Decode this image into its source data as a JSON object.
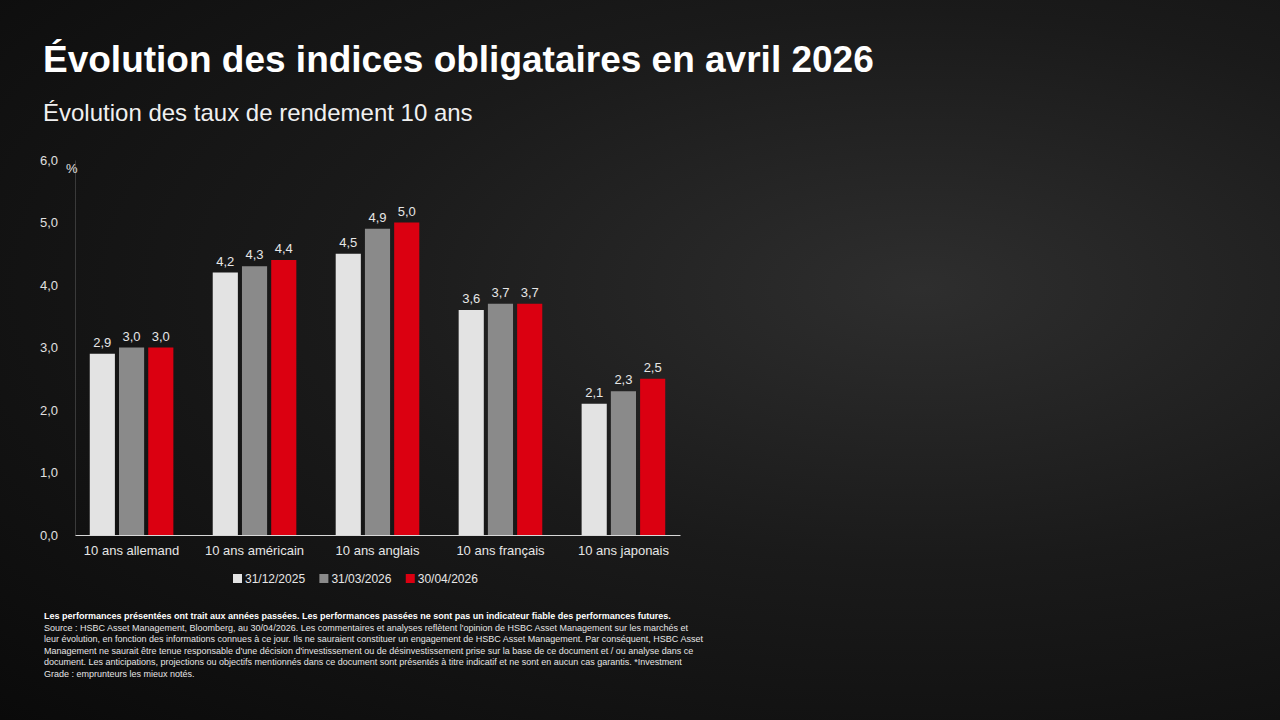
{
  "chart_data": {
    "type": "bar",
    "title": "Évolution des indices obligataires en avril 2026",
    "subtitle": "Évolution des taux de rendement 10 ans",
    "ylabel": "%",
    "categories": [
      "10 ans allemand",
      "10 ans américain",
      "10 ans anglais",
      "10 ans français",
      "10 ans japonais"
    ],
    "series": [
      {
        "name": "31/12/2025",
        "color": "#e3e3e3",
        "values": [
          2.9,
          4.2,
          4.5,
          3.6,
          2.1
        ],
        "value_labels": [
          "2,9",
          "4,2",
          "4,5",
          "3,6",
          "2,1"
        ]
      },
      {
        "name": "31/03/2026",
        "color": "#8a8a8a",
        "values": [
          3.0,
          4.3,
          4.9,
          3.7,
          2.3
        ],
        "value_labels": [
          "3,0",
          "4,3",
          "4,9",
          "3,7",
          "2,3"
        ]
      },
      {
        "name": "30/04/2026",
        "color": "#db0011",
        "values": [
          3.0,
          4.4,
          5.0,
          3.7,
          2.5
        ],
        "value_labels": [
          "3,0",
          "4,4",
          "5,0",
          "3,7",
          "2,5"
        ]
      }
    ],
    "ylim": [
      0,
      6
    ],
    "yticks": [
      {
        "value": 0,
        "label": "0,0"
      },
      {
        "value": 1,
        "label": "1,0"
      },
      {
        "value": 2,
        "label": "2,0"
      },
      {
        "value": 3,
        "label": "3,0"
      },
      {
        "value": 4,
        "label": "4,0"
      },
      {
        "value": 5,
        "label": "5,0"
      },
      {
        "value": 6,
        "label": "6,0"
      }
    ],
    "grid": false,
    "legend": "bottom",
    "data_labels": true,
    "annotations": [
      "Les performances présentées ont trait aux années passées. Les performances passées ne sont pas un indicateur fiable des performances futures.",
      "Source : HSBC Asset Management, Bloomberg, au 30/04/2026. Les commentaires et analyses reflètent l'opinion de HSBC Asset Management sur les marchés et leur évolution, en fonction des informations connues à ce jour. Ils ne sauraient constituer un engagement de HSBC Asset Management. Par conséquent, HSBC Asset Management ne saurait être tenue responsable d'une décision d'investissement ou de désinvestissement prise sur la base de ce document et / ou analyse dans ce document. Les anticipations, projections ou objectifs mentionnés dans ce document sont présentés à titre indicatif et ne sont en aucun cas garantis. *Investment Grade : emprunteurs les mieux notés."
    ]
  }
}
